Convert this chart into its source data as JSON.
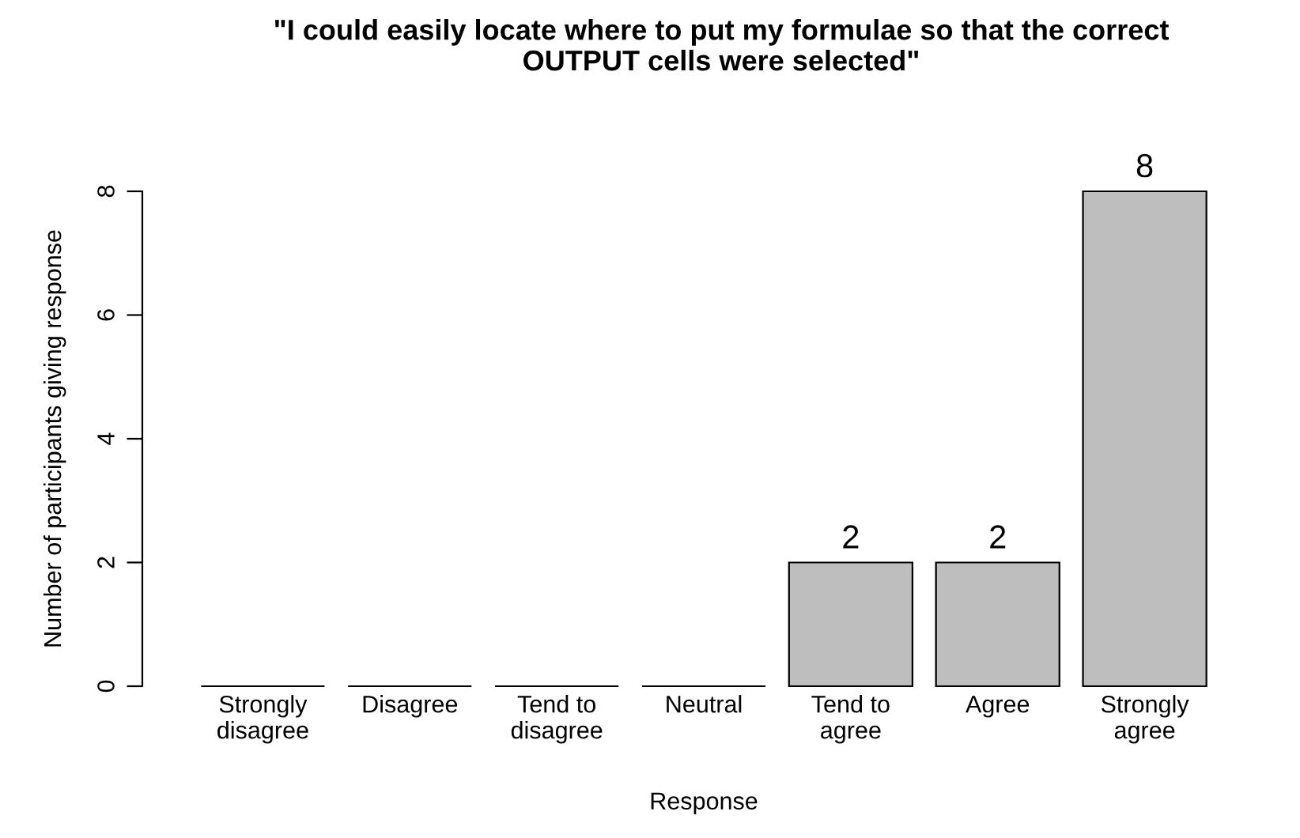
{
  "chart_data": {
    "type": "bar",
    "title": "\"I could easily locate where to put my formulae so that the correct\nOUTPUT cells were selected\"",
    "xlabel": "Response",
    "ylabel": "Number of participants giving response",
    "categories": [
      "Strongly\ndisagree",
      "Disagree",
      "Tend to\ndisagree",
      "Neutral",
      "Tend to\nagree",
      "Agree",
      "Strongly\nagree"
    ],
    "values": [
      0,
      0,
      0,
      0,
      2,
      2,
      8
    ],
    "value_labels": [
      null,
      null,
      null,
      null,
      "2",
      "2",
      "8"
    ],
    "color": "#bebebe",
    "ylim": [
      0,
      8
    ],
    "yticks": [
      0,
      2,
      4,
      6,
      8
    ]
  }
}
